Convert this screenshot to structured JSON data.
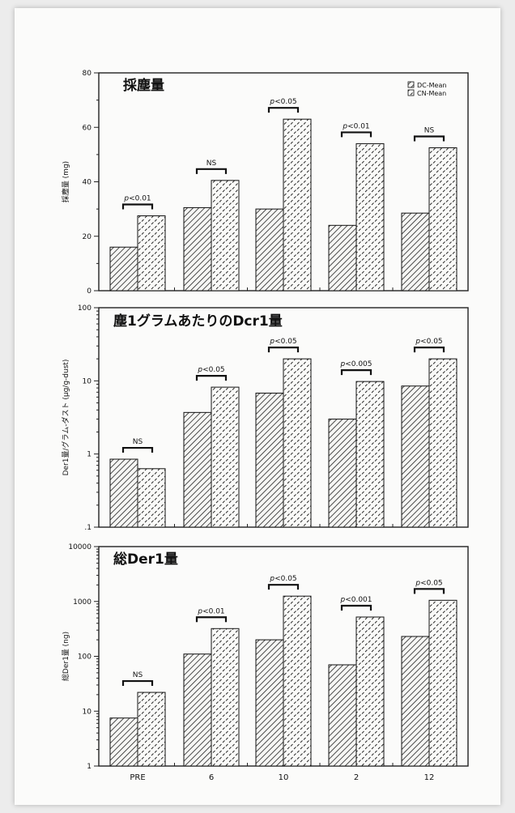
{
  "chart_data": [
    {
      "type": "bar",
      "title": "採塵量",
      "ylabel": "採塵量 (mg)",
      "yscale": "linear",
      "ylim": [
        0,
        80
      ],
      "yticks": [
        "0",
        "20",
        "40",
        "60",
        "80"
      ],
      "categories": [
        "PRE",
        "6",
        "10",
        "2",
        "12"
      ],
      "series": [
        {
          "name": "DC-Mean",
          "values": [
            16,
            30.5,
            30,
            24,
            28.5
          ]
        },
        {
          "name": "CN-Mean",
          "values": [
            27.5,
            40.5,
            63,
            54,
            52.5
          ]
        }
      ],
      "annotations": [
        "p<0.01",
        "NS",
        "p<0.05",
        "p<0.01",
        "NS"
      ],
      "legend": "top-right",
      "legend_entries": [
        "DC-Mean",
        "CN-Mean"
      ]
    },
    {
      "type": "bar",
      "title": "塵1グラムあたりのDcr1量",
      "ylabel": "Der1量/グラム-ダスト (µg/g-dust)",
      "yscale": "log",
      "ylim": [
        0.1,
        100
      ],
      "yticks": [
        ".1",
        "1",
        "10",
        "100"
      ],
      "categories": [
        "PRE",
        "6",
        "10",
        "2",
        "12"
      ],
      "series": [
        {
          "name": "DC-Mean",
          "values": [
            0.85,
            3.7,
            6.8,
            3.0,
            8.5
          ]
        },
        {
          "name": "CN-Mean",
          "values": [
            0.63,
            8.2,
            20,
            9.8,
            20
          ]
        }
      ],
      "annotations": [
        "NS",
        "p<0.05",
        "p<0.05",
        "p<0.005",
        "p<0.05"
      ]
    },
    {
      "type": "bar",
      "title": "総Der1量",
      "ylabel": "総Der1量 (ng)",
      "yscale": "log",
      "ylim": [
        1,
        10000
      ],
      "yticks": [
        "1",
        "10",
        "100",
        "1000",
        "10000"
      ],
      "categories": [
        "PRE",
        "6",
        "10",
        "2",
        "12"
      ],
      "series": [
        {
          "name": "DC-Mean",
          "values": [
            7.5,
            110,
            200,
            70,
            230
          ]
        },
        {
          "name": "CN-Mean",
          "values": [
            22,
            320,
            1250,
            520,
            1050
          ]
        }
      ],
      "annotations": [
        "NS",
        "p<0.01",
        "p<0.05",
        "p<0.001",
        "p<0.05"
      ],
      "xticks": [
        "PRE",
        "6",
        "10",
        "2",
        "12"
      ]
    }
  ]
}
